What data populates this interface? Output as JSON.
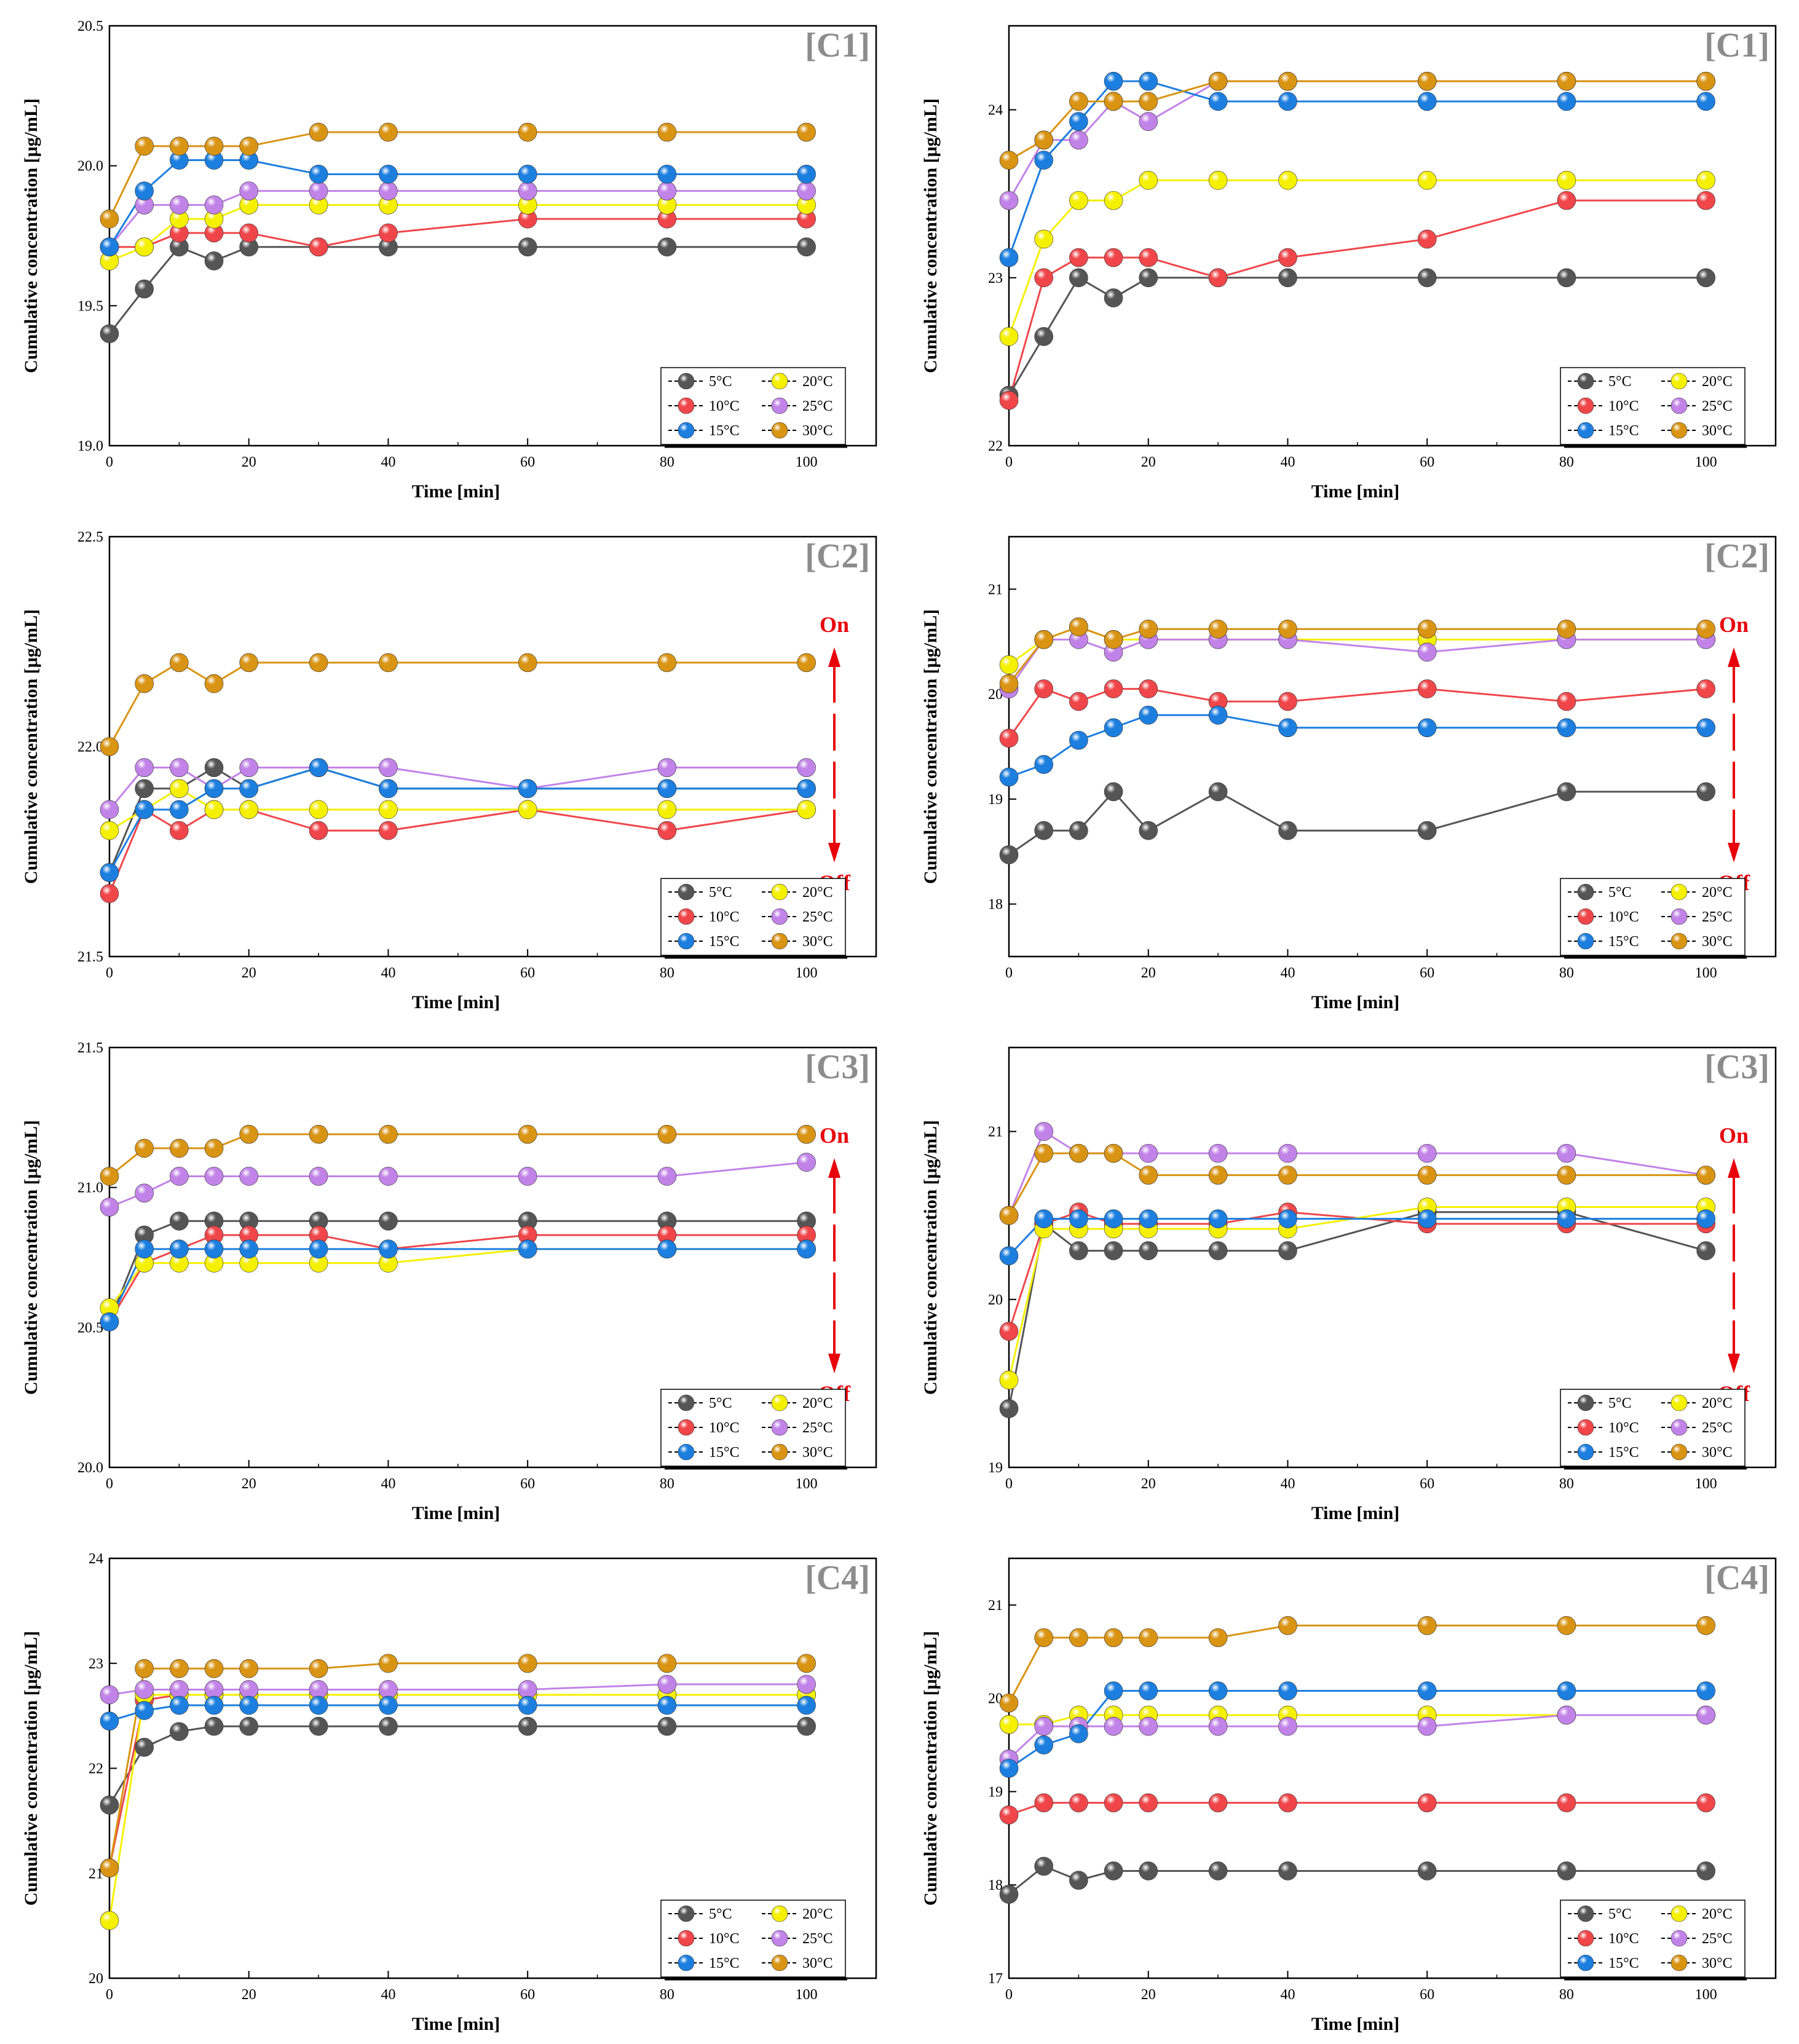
{
  "legend_labels": [
    "5°C",
    "20°C",
    "10°C",
    "25°C",
    "15°C",
    "30°C"
  ],
  "series_colors": {
    "5°C": "#555555",
    "10°C": "#f0464a",
    "15°C": "#1c7fe0",
    "20°C": "#f5f000",
    "25°C": "#c283e8",
    "30°C": "#d99413"
  },
  "onoff_color": "#e8000b",
  "chart_data": [
    {
      "type": "line",
      "panel_label": "[C1]",
      "title": "",
      "xlabel": "Time [min]",
      "ylabel": "Cumulative concentration [μg/mL]",
      "x": [
        0,
        5,
        10,
        15,
        20,
        30,
        40,
        60,
        80,
        100
      ],
      "xlim": [
        0,
        110
      ],
      "xticks": [
        "0",
        "20",
        "40",
        "60",
        "80",
        "100"
      ],
      "ylim": [
        19.0,
        20.5
      ],
      "yticks": [
        "19.0",
        "19.5",
        "20.0",
        "20.5"
      ],
      "has_onoff": false,
      "legend": "bottom-right",
      "series": [
        {
          "name": "5°C",
          "values": [
            19.4,
            19.56,
            19.71,
            19.66,
            19.71,
            19.71,
            19.71,
            19.71,
            19.71,
            19.71
          ]
        },
        {
          "name": "10°C",
          "values": [
            19.71,
            19.71,
            19.76,
            19.76,
            19.76,
            19.71,
            19.76,
            19.81,
            19.81,
            19.81
          ]
        },
        {
          "name": "15°C",
          "values": [
            19.71,
            19.91,
            20.02,
            20.02,
            20.02,
            19.97,
            19.97,
            19.97,
            19.97,
            19.97
          ]
        },
        {
          "name": "20°C",
          "values": [
            19.66,
            19.71,
            19.81,
            19.81,
            19.86,
            19.86,
            19.86,
            19.86,
            19.86,
            19.86
          ]
        },
        {
          "name": "25°C",
          "values": [
            19.71,
            19.86,
            19.86,
            19.86,
            19.91,
            19.91,
            19.91,
            19.91,
            19.91,
            19.91
          ]
        },
        {
          "name": "30°C",
          "values": [
            19.81,
            20.07,
            20.07,
            20.07,
            20.07,
            20.12,
            20.12,
            20.12,
            20.12,
            20.12
          ]
        }
      ]
    },
    {
      "type": "line",
      "panel_label": "[C1]",
      "title": "",
      "xlabel": "Time [min]",
      "ylabel": "Cumulative concentration [μg/mL]",
      "x": [
        0,
        5,
        10,
        15,
        20,
        30,
        40,
        60,
        80,
        100
      ],
      "xlim": [
        0,
        110
      ],
      "xticks": [
        "0",
        "20",
        "40",
        "60",
        "80",
        "100"
      ],
      "ylim": [
        22.0,
        24.5
      ],
      "yticks": [
        "22",
        "23",
        "24"
      ],
      "has_onoff": false,
      "legend": "bottom-right",
      "series": [
        {
          "name": "5°C",
          "values": [
            22.3,
            22.65,
            23.0,
            22.88,
            23.0,
            23.0,
            23.0,
            23.0,
            23.0,
            23.0
          ]
        },
        {
          "name": "10°C",
          "values": [
            22.27,
            23.0,
            23.12,
            23.12,
            23.12,
            23.0,
            23.12,
            23.23,
            23.46,
            23.46
          ]
        },
        {
          "name": "15°C",
          "values": [
            23.12,
            23.7,
            23.93,
            24.17,
            24.17,
            24.05,
            24.05,
            24.05,
            24.05,
            24.05
          ]
        },
        {
          "name": "20°C",
          "values": [
            22.65,
            23.23,
            23.46,
            23.46,
            23.58,
            23.58,
            23.58,
            23.58,
            23.58,
            23.58
          ]
        },
        {
          "name": "25°C",
          "values": [
            23.46,
            23.82,
            23.82,
            24.05,
            23.93,
            24.17,
            24.17,
            24.17,
            24.17,
            24.17
          ]
        },
        {
          "name": "30°C",
          "values": [
            23.7,
            23.82,
            24.05,
            24.05,
            24.05,
            24.17,
            24.17,
            24.17,
            24.17,
            24.17
          ]
        }
      ]
    },
    {
      "type": "line",
      "panel_label": "[C2]",
      "title": "",
      "xlabel": "Time [min]",
      "ylabel": "Cumulative concentration [μg/mL]",
      "x": [
        0,
        5,
        10,
        15,
        20,
        30,
        40,
        60,
        80,
        100
      ],
      "xlim": [
        0,
        110
      ],
      "xticks": [
        "0",
        "20",
        "40",
        "60",
        "80",
        "100"
      ],
      "ylim": [
        21.5,
        22.5
      ],
      "yticks": [
        "21.5",
        "22.0",
        "22.5"
      ],
      "has_onoff": true,
      "on_label": "On",
      "off_label": "Off",
      "legend": "bottom-right",
      "series": [
        {
          "name": "5°C",
          "values": [
            21.7,
            21.9,
            21.9,
            21.95,
            21.9,
            21.95,
            21.9,
            21.9,
            21.9,
            21.9
          ]
        },
        {
          "name": "10°C",
          "values": [
            21.65,
            21.85,
            21.8,
            21.85,
            21.85,
            21.8,
            21.8,
            21.85,
            21.8,
            21.85
          ]
        },
        {
          "name": "15°C",
          "values": [
            21.7,
            21.85,
            21.85,
            21.9,
            21.9,
            21.95,
            21.9,
            21.9,
            21.9,
            21.9
          ]
        },
        {
          "name": "20°C",
          "values": [
            21.8,
            21.85,
            21.9,
            21.85,
            21.85,
            21.85,
            21.85,
            21.85,
            21.85,
            21.85
          ]
        },
        {
          "name": "25°C",
          "values": [
            21.85,
            21.95,
            21.95,
            21.9,
            21.95,
            21.95,
            21.95,
            21.9,
            21.95,
            21.95
          ]
        },
        {
          "name": "30°C",
          "values": [
            22.0,
            22.15,
            22.2,
            22.15,
            22.2,
            22.2,
            22.2,
            22.2,
            22.2,
            22.2
          ]
        }
      ]
    },
    {
      "type": "line",
      "panel_label": "[C2]",
      "title": "",
      "xlabel": "Time [min]",
      "ylabel": "Cumulative concentration [μg/mL]",
      "x": [
        0,
        5,
        10,
        15,
        20,
        30,
        40,
        60,
        80,
        100
      ],
      "xlim": [
        0,
        110
      ],
      "xticks": [
        "0",
        "20",
        "40",
        "60",
        "80",
        "100"
      ],
      "ylim": [
        17.5,
        21.5
      ],
      "yticks": [
        "18",
        "19",
        "20",
        "21"
      ],
      "has_onoff": true,
      "on_label": "On",
      "off_label": "Off",
      "legend": "bottom-right",
      "series": [
        {
          "name": "5°C",
          "values": [
            18.47,
            18.7,
            18.7,
            19.07,
            18.7,
            19.07,
            18.7,
            18.7,
            19.07,
            19.07
          ]
        },
        {
          "name": "10°C",
          "values": [
            19.58,
            20.05,
            19.93,
            20.05,
            20.05,
            19.93,
            19.93,
            20.05,
            19.93,
            20.05
          ]
        },
        {
          "name": "15°C",
          "values": [
            19.21,
            19.33,
            19.56,
            19.68,
            19.8,
            19.8,
            19.68,
            19.68,
            19.68,
            19.68
          ]
        },
        {
          "name": "20°C",
          "values": [
            20.28,
            20.52,
            20.64,
            20.52,
            20.52,
            20.52,
            20.52,
            20.52,
            20.52,
            20.52
          ]
        },
        {
          "name": "25°C",
          "values": [
            20.05,
            20.52,
            20.52,
            20.4,
            20.52,
            20.52,
            20.52,
            20.4,
            20.52,
            20.52
          ]
        },
        {
          "name": "30°C",
          "values": [
            20.1,
            20.52,
            20.64,
            20.52,
            20.62,
            20.62,
            20.62,
            20.62,
            20.62,
            20.62
          ]
        }
      ]
    },
    {
      "type": "line",
      "panel_label": "[C3]",
      "title": "",
      "xlabel": "Time [min]",
      "ylabel": "Cumulative concentration [μg/mL]",
      "x": [
        0,
        5,
        10,
        15,
        20,
        30,
        40,
        60,
        80,
        100
      ],
      "xlim": [
        0,
        110
      ],
      "xticks": [
        "0",
        "20",
        "40",
        "60",
        "80",
        "100"
      ],
      "ylim": [
        20.0,
        21.5
      ],
      "yticks": [
        "20.0",
        "20.5",
        "21.0",
        "21.5"
      ],
      "has_onoff": true,
      "on_label": "On",
      "off_label": "Off",
      "legend": "bottom-right",
      "series": [
        {
          "name": "5°C",
          "values": [
            20.52,
            20.83,
            20.88,
            20.88,
            20.88,
            20.88,
            20.88,
            20.88,
            20.88,
            20.88
          ]
        },
        {
          "name": "10°C",
          "values": [
            20.52,
            20.73,
            20.78,
            20.83,
            20.83,
            20.83,
            20.78,
            20.83,
            20.83,
            20.83
          ]
        },
        {
          "name": "15°C",
          "values": [
            20.52,
            20.78,
            20.78,
            20.78,
            20.78,
            20.78,
            20.78,
            20.78,
            20.78,
            20.78
          ]
        },
        {
          "name": "20°C",
          "values": [
            20.57,
            20.73,
            20.73,
            20.73,
            20.73,
            20.73,
            20.73,
            20.78,
            20.78,
            20.78
          ]
        },
        {
          "name": "25°C",
          "values": [
            20.93,
            20.98,
            21.04,
            21.04,
            21.04,
            21.04,
            21.04,
            21.04,
            21.04,
            21.09
          ]
        },
        {
          "name": "30°C",
          "values": [
            21.04,
            21.14,
            21.14,
            21.14,
            21.19,
            21.19,
            21.19,
            21.19,
            21.19,
            21.19
          ]
        }
      ]
    },
    {
      "type": "line",
      "panel_label": "[C3]",
      "title": "",
      "xlabel": "Time [min]",
      "ylabel": "Cumulative concentration [μg/mL]",
      "x": [
        0,
        5,
        10,
        15,
        20,
        30,
        40,
        60,
        80,
        100
      ],
      "xlim": [
        0,
        110
      ],
      "xticks": [
        "0",
        "20",
        "40",
        "60",
        "80",
        "100"
      ],
      "ylim": [
        19.0,
        21.5
      ],
      "yticks": [
        "19",
        "20",
        "21"
      ],
      "has_onoff": true,
      "on_label": "On",
      "off_label": "Off",
      "legend": "bottom-right",
      "series": [
        {
          "name": "5°C",
          "values": [
            19.35,
            20.45,
            20.29,
            20.29,
            20.29,
            20.29,
            20.29,
            20.52,
            20.52,
            20.29
          ]
        },
        {
          "name": "10°C",
          "values": [
            19.81,
            20.45,
            20.52,
            20.45,
            20.45,
            20.45,
            20.52,
            20.45,
            20.45,
            20.45
          ]
        },
        {
          "name": "15°C",
          "values": [
            20.26,
            20.48,
            20.48,
            20.48,
            20.48,
            20.48,
            20.48,
            20.48,
            20.48,
            20.48
          ]
        },
        {
          "name": "20°C",
          "values": [
            19.52,
            20.42,
            20.42,
            20.42,
            20.42,
            20.42,
            20.42,
            20.55,
            20.55,
            20.55
          ]
        },
        {
          "name": "25°C",
          "values": [
            20.5,
            21.0,
            20.87,
            20.87,
            20.87,
            20.87,
            20.87,
            20.87,
            20.87,
            20.74
          ]
        },
        {
          "name": "30°C",
          "values": [
            20.5,
            20.87,
            20.87,
            20.87,
            20.74,
            20.74,
            20.74,
            20.74,
            20.74,
            20.74
          ]
        }
      ]
    },
    {
      "type": "line",
      "panel_label": "[C4]",
      "title": "",
      "xlabel": "Time [min]",
      "ylabel": "Cumulative concentration [μg/mL]",
      "x": [
        0,
        5,
        10,
        15,
        20,
        30,
        40,
        60,
        80,
        100
      ],
      "xlim": [
        0,
        110
      ],
      "xticks": [
        "0",
        "20",
        "40",
        "60",
        "80",
        "100"
      ],
      "ylim": [
        20.0,
        24.0
      ],
      "yticks": [
        "20",
        "21",
        "22",
        "23",
        "24"
      ],
      "has_onoff": false,
      "legend": "bottom-right",
      "series": [
        {
          "name": "5°C",
          "values": [
            21.65,
            22.2,
            22.35,
            22.4,
            22.4,
            22.4,
            22.4,
            22.4,
            22.4,
            22.4
          ]
        },
        {
          "name": "10°C",
          "values": [
            21.05,
            22.65,
            22.7,
            22.7,
            22.7,
            22.7,
            22.7,
            22.7,
            22.7,
            22.7
          ]
        },
        {
          "name": "15°C",
          "values": [
            22.45,
            22.55,
            22.6,
            22.6,
            22.6,
            22.6,
            22.6,
            22.6,
            22.6,
            22.6
          ]
        },
        {
          "name": "20°C",
          "values": [
            20.55,
            22.7,
            22.7,
            22.7,
            22.7,
            22.7,
            22.7,
            22.7,
            22.7,
            22.7
          ]
        },
        {
          "name": "25°C",
          "values": [
            22.7,
            22.75,
            22.75,
            22.75,
            22.75,
            22.75,
            22.75,
            22.75,
            22.8,
            22.8
          ]
        },
        {
          "name": "30°C",
          "values": [
            21.05,
            22.95,
            22.95,
            22.95,
            22.95,
            22.95,
            23.0,
            23.0,
            23.0,
            23.0
          ]
        }
      ]
    },
    {
      "type": "line",
      "panel_label": "[C4]",
      "title": "",
      "xlabel": "Time [min]",
      "ylabel": "Cumulative concentration [μg/mL]",
      "x": [
        0,
        5,
        10,
        15,
        20,
        30,
        40,
        60,
        80,
        100
      ],
      "xlim": [
        0,
        110
      ],
      "xticks": [
        "0",
        "20",
        "40",
        "60",
        "80",
        "100"
      ],
      "ylim": [
        17.0,
        21.5
      ],
      "yticks": [
        "17",
        "18",
        "19",
        "20",
        "21"
      ],
      "has_onoff": false,
      "legend": "bottom-right",
      "series": [
        {
          "name": "5°C",
          "values": [
            17.9,
            18.2,
            18.05,
            18.15,
            18.15,
            18.15,
            18.15,
            18.15,
            18.15,
            18.15
          ]
        },
        {
          "name": "10°C",
          "values": [
            18.75,
            18.88,
            18.88,
            18.88,
            18.88,
            18.88,
            18.88,
            18.88,
            18.88,
            18.88
          ]
        },
        {
          "name": "15°C",
          "values": [
            19.25,
            19.5,
            19.62,
            20.08,
            20.08,
            20.08,
            20.08,
            20.08,
            20.08,
            20.08
          ]
        },
        {
          "name": "20°C",
          "values": [
            19.72,
            19.72,
            19.82,
            19.82,
            19.82,
            19.82,
            19.82,
            19.82,
            19.82,
            19.82
          ]
        },
        {
          "name": "25°C",
          "values": [
            19.35,
            19.7,
            19.7,
            19.7,
            19.7,
            19.7,
            19.7,
            19.7,
            19.82,
            19.82
          ]
        },
        {
          "name": "30°C",
          "values": [
            19.95,
            20.65,
            20.65,
            20.65,
            20.65,
            20.65,
            20.78,
            20.78,
            20.78,
            20.78
          ]
        }
      ]
    }
  ]
}
